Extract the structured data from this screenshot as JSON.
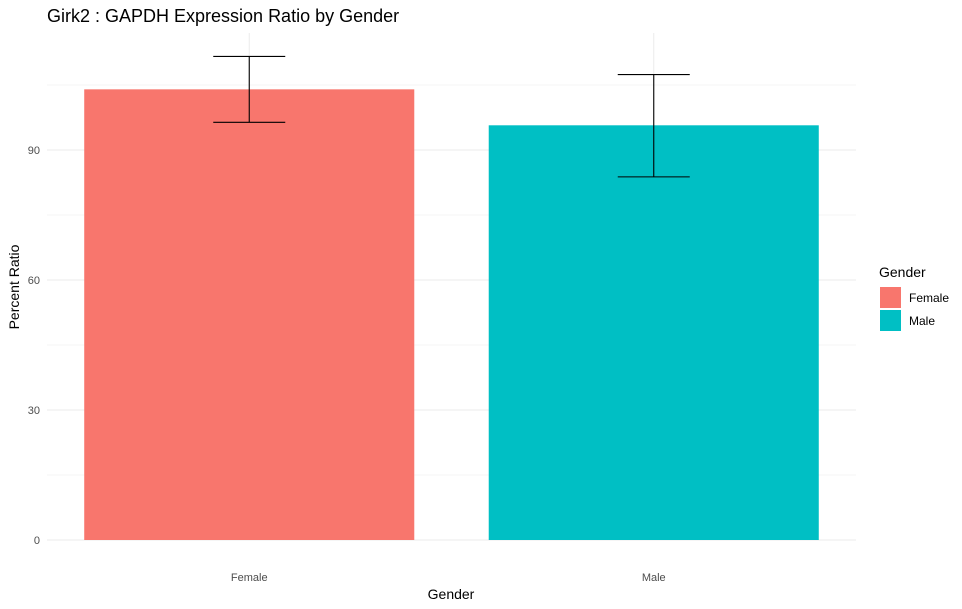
{
  "chart_data": {
    "type": "bar",
    "title": "Girk2 : GAPDH Expression Ratio by Gender",
    "xlabel": "Gender",
    "ylabel": "Percent Ratio",
    "categories": [
      "Female",
      "Male"
    ],
    "values": [
      104,
      95.7
    ],
    "error_low": [
      96.4,
      83.8
    ],
    "error_high": [
      111.6,
      107.4
    ],
    "colors": [
      "#F8766D",
      "#00BFC4"
    ],
    "ylim": [
      0,
      117
    ],
    "yticks": [
      0,
      30,
      60,
      90
    ],
    "grid": true,
    "legend": {
      "title": "Gender",
      "position": "right",
      "entries": [
        "Female",
        "Male"
      ]
    }
  }
}
